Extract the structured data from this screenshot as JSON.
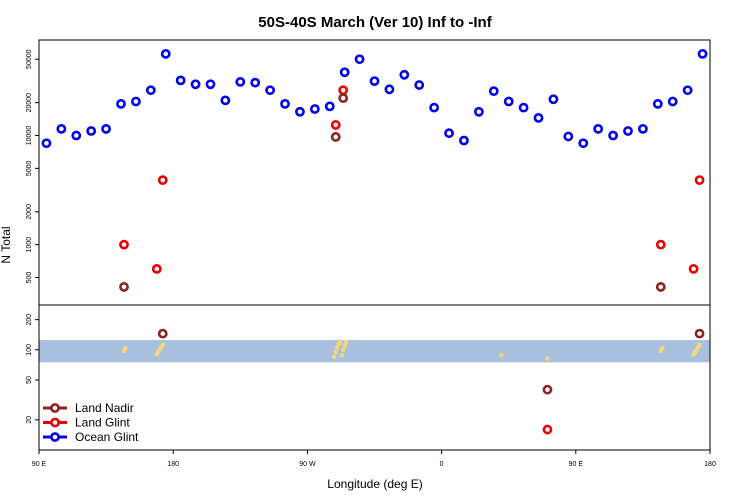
{
  "chart_data": {
    "type": "scatter",
    "title": "50S-40S March (Ver 10)   Inf to -Inf",
    "xlabel": "Longitude (deg E)",
    "ylabel": "N Total",
    "x_ticks": [
      {
        "pos": 0,
        "label": "90 E"
      },
      {
        "pos": 90,
        "label": "180"
      },
      {
        "pos": 180,
        "label": "90 W"
      },
      {
        "pos": 270,
        "label": "0"
      },
      {
        "pos": 360,
        "label": "90 E"
      },
      {
        "pos": 450,
        "label": "180"
      }
    ],
    "xlim": [
      0,
      450
    ],
    "top_panel": {
      "ylim": [
        280,
        75000
      ],
      "y_ticks": [
        {
          "value": 500,
          "label": "500"
        },
        {
          "value": 1000,
          "label": "1000"
        },
        {
          "value": 2000,
          "label": "2000"
        },
        {
          "value": 5000,
          "label": "5000"
        },
        {
          "value": 10000,
          "label": "10000"
        },
        {
          "value": 20000,
          "label": "20000"
        },
        {
          "value": 50000,
          "label": "50000"
        }
      ]
    },
    "bottom_panel": {
      "ylim": [
        10,
        280
      ],
      "y_ticks": [
        {
          "value": 20,
          "label": "20"
        },
        {
          "value": 50,
          "label": "50"
        },
        {
          "value": 100,
          "label": "100"
        },
        {
          "value": 200,
          "label": "200"
        }
      ],
      "band": {
        "low": 75,
        "high": 125,
        "color": "#a8bfdd"
      }
    },
    "series": [
      {
        "name": "Ocean Glint",
        "color": "#0000ee",
        "points": [
          [
            5,
            8500
          ],
          [
            15,
            11500
          ],
          [
            25,
            10000
          ],
          [
            35,
            11000
          ],
          [
            45,
            11500
          ],
          [
            55,
            19500
          ],
          [
            65,
            20500
          ],
          [
            75,
            26000
          ],
          [
            85,
            56000
          ],
          [
            95,
            32000
          ],
          [
            105,
            29500
          ],
          [
            115,
            29500
          ],
          [
            125,
            21000
          ],
          [
            135,
            31000
          ],
          [
            145,
            30500
          ],
          [
            155,
            26000
          ],
          [
            165,
            19500
          ],
          [
            175,
            16500
          ],
          [
            185,
            17500
          ],
          [
            195,
            18500
          ],
          [
            205,
            38000
          ],
          [
            215,
            50000
          ],
          [
            225,
            31500
          ],
          [
            235,
            26500
          ],
          [
            245,
            36000
          ],
          [
            255,
            29000
          ],
          [
            265,
            18000
          ],
          [
            275,
            10500
          ],
          [
            285,
            9000
          ],
          [
            295,
            16500
          ],
          [
            305,
            25500
          ],
          [
            315,
            20500
          ],
          [
            325,
            18000
          ],
          [
            335,
            14500
          ],
          [
            345,
            21500
          ],
          [
            355,
            9800
          ],
          [
            365,
            8500
          ],
          [
            375,
            11500
          ],
          [
            385,
            10000
          ],
          [
            395,
            11000
          ],
          [
            405,
            11500
          ],
          [
            415,
            19500
          ],
          [
            425,
            20500
          ],
          [
            435,
            26000
          ],
          [
            445,
            56000
          ]
        ]
      },
      {
        "name": "Land Glint",
        "color": "#ee0000",
        "points": [
          [
            57,
            1000
          ],
          [
            79,
            600
          ],
          [
            83,
            3900
          ],
          [
            199,
            12500
          ],
          [
            204,
            26000
          ],
          [
            341,
            16
          ],
          [
            417,
            1000
          ],
          [
            439,
            600
          ],
          [
            443,
            3900
          ]
        ]
      },
      {
        "name": "Land Nadir",
        "color": "#8b2323",
        "points": [
          [
            57,
            410
          ],
          [
            83,
            145
          ],
          [
            199,
            9700
          ],
          [
            204,
            22000
          ],
          [
            341,
            40
          ],
          [
            417,
            410
          ],
          [
            443,
            145
          ]
        ]
      }
    ],
    "land_marks": [
      {
        "x": 57,
        "y": 98
      },
      {
        "x": 58,
        "y": 104
      },
      {
        "x": 79,
        "y": 90
      },
      {
        "x": 80,
        "y": 95
      },
      {
        "x": 81,
        "y": 100
      },
      {
        "x": 82,
        "y": 106
      },
      {
        "x": 83,
        "y": 112
      },
      {
        "x": 198,
        "y": 85
      },
      {
        "x": 199,
        "y": 95
      },
      {
        "x": 200,
        "y": 105
      },
      {
        "x": 201,
        "y": 115
      },
      {
        "x": 202,
        "y": 122
      },
      {
        "x": 203,
        "y": 88
      },
      {
        "x": 204,
        "y": 100
      },
      {
        "x": 205,
        "y": 110
      },
      {
        "x": 206,
        "y": 120
      },
      {
        "x": 341,
        "y": 82
      },
      {
        "x": 310,
        "y": 88
      },
      {
        "x": 417,
        "y": 98
      },
      {
        "x": 418,
        "y": 104
      },
      {
        "x": 439,
        "y": 90
      },
      {
        "x": 440,
        "y": 95
      },
      {
        "x": 441,
        "y": 100
      },
      {
        "x": 442,
        "y": 106
      },
      {
        "x": 443,
        "y": 112
      }
    ],
    "legend_position": "bottom-left",
    "legend": [
      {
        "name": "Land Nadir",
        "color": "#8b2323"
      },
      {
        "name": "Land Glint",
        "color": "#ee0000"
      },
      {
        "name": "Ocean Glint",
        "color": "#0000ee"
      }
    ]
  }
}
